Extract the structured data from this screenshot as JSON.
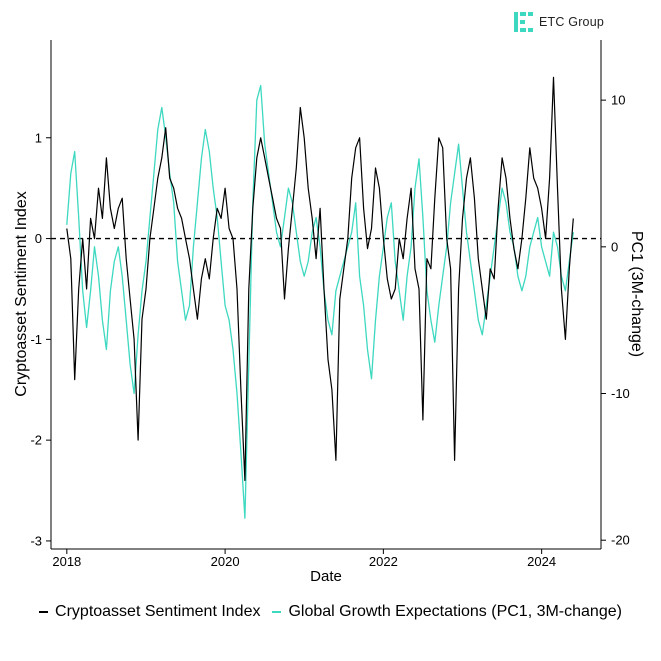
{
  "brand": {
    "name": "ETC Group",
    "color": "#3dd8c0"
  },
  "chart_data": {
    "type": "line",
    "title": "",
    "xlabel": "Date",
    "ylabel": "Cryptoasset Sentiment Index",
    "y2label": "PC1 (3M-change)",
    "xlim": [
      2017.8,
      2024.75
    ],
    "ylim": [
      -3.08,
      1.97
    ],
    "y2lim": [
      -20.6,
      14.1
    ],
    "x_ticks": [
      2018,
      2020,
      2022,
      2024
    ],
    "x_tick_labels": [
      "2018",
      "2020",
      "2022",
      "2024"
    ],
    "y_ticks": [
      -3,
      -2,
      -1,
      0,
      1
    ],
    "y_tick_labels": [
      "-3",
      "-2",
      "-1",
      "0",
      "1"
    ],
    "y2_ticks": [
      -20,
      -10,
      0,
      10
    ],
    "y2_tick_labels": [
      "-20",
      "-10",
      "0",
      "10"
    ],
    "reference_line": {
      "axis": "y",
      "value": 0,
      "style": "dashed"
    },
    "grid": false,
    "legend_position": "bottom",
    "series": [
      {
        "name": "Cryptoasset Sentiment Index",
        "axis": "left",
        "color": "#000000",
        "x": [
          2018.0,
          2018.05,
          2018.1,
          2018.15,
          2018.2,
          2018.25,
          2018.3,
          2018.35,
          2018.4,
          2018.45,
          2018.5,
          2018.55,
          2018.6,
          2018.65,
          2018.7,
          2018.75,
          2018.8,
          2018.85,
          2018.9,
          2018.95,
          2019.0,
          2019.05,
          2019.1,
          2019.15,
          2019.2,
          2019.25,
          2019.3,
          2019.35,
          2019.4,
          2019.45,
          2019.5,
          2019.55,
          2019.6,
          2019.65,
          2019.7,
          2019.75,
          2019.8,
          2019.85,
          2019.9,
          2019.95,
          2020.0,
          2020.05,
          2020.1,
          2020.15,
          2020.2,
          2020.25,
          2020.3,
          2020.35,
          2020.4,
          2020.45,
          2020.5,
          2020.55,
          2020.6,
          2020.65,
          2020.7,
          2020.75,
          2020.8,
          2020.85,
          2020.9,
          2020.95,
          2021.0,
          2021.05,
          2021.1,
          2021.15,
          2021.2,
          2021.25,
          2021.3,
          2021.35,
          2021.4,
          2021.45,
          2021.5,
          2021.55,
          2021.6,
          2021.65,
          2021.7,
          2021.75,
          2021.8,
          2021.85,
          2021.9,
          2021.95,
          2022.0,
          2022.05,
          2022.1,
          2022.15,
          2022.2,
          2022.25,
          2022.3,
          2022.35,
          2022.4,
          2022.45,
          2022.5,
          2022.55,
          2022.6,
          2022.65,
          2022.7,
          2022.75,
          2022.8,
          2022.85,
          2022.9,
          2022.95,
          2023.0,
          2023.05,
          2023.1,
          2023.15,
          2023.2,
          2023.25,
          2023.3,
          2023.35,
          2023.4,
          2023.45,
          2023.5,
          2023.55,
          2023.6,
          2023.65,
          2023.7,
          2023.75,
          2023.8,
          2023.85,
          2023.9,
          2023.95,
          2024.0,
          2024.05,
          2024.1,
          2024.15,
          2024.2,
          2024.25,
          2024.3,
          2024.35,
          2024.4
        ],
        "values": [
          0.1,
          -0.2,
          -1.4,
          -0.5,
          0.0,
          -0.5,
          0.2,
          0.0,
          0.5,
          0.2,
          0.8,
          0.3,
          0.1,
          0.3,
          0.4,
          -0.2,
          -0.6,
          -1.0,
          -2.0,
          -0.8,
          -0.5,
          0.0,
          0.3,
          0.6,
          0.8,
          1.1,
          0.6,
          0.5,
          0.3,
          0.2,
          0.0,
          -0.2,
          -0.5,
          -0.8,
          -0.4,
          -0.2,
          -0.4,
          0.0,
          0.3,
          0.2,
          0.5,
          0.1,
          0.0,
          -0.5,
          -1.5,
          -2.4,
          -0.5,
          0.3,
          0.8,
          1.0,
          0.8,
          0.6,
          0.4,
          0.2,
          0.1,
          -0.6,
          -0.1,
          0.3,
          0.7,
          1.3,
          1.0,
          0.5,
          0.2,
          -0.2,
          0.3,
          -0.5,
          -1.2,
          -1.5,
          -2.2,
          -0.6,
          -0.3,
          0.0,
          0.6,
          0.9,
          1.0,
          0.3,
          -0.1,
          0.1,
          0.7,
          0.5,
          0.0,
          -0.4,
          -0.6,
          -0.5,
          0.0,
          -0.2,
          0.2,
          0.5,
          -0.3,
          -0.5,
          -1.8,
          -0.2,
          -0.3,
          0.4,
          1.0,
          0.9,
          0.0,
          -0.3,
          -2.2,
          -0.5,
          0.2,
          0.6,
          0.8,
          0.4,
          -0.2,
          -0.5,
          -0.8,
          -0.3,
          -0.4,
          0.3,
          0.8,
          0.6,
          0.2,
          -0.1,
          -0.3,
          0.0,
          0.4,
          0.9,
          0.6,
          0.5,
          0.3,
          0.0,
          0.6,
          1.6,
          0.5,
          -0.5,
          -1.0,
          -0.3,
          0.2
        ]
      },
      {
        "name": "Global Growth Expectations (PC1, 3M-change)",
        "axis": "right",
        "color": "#3dd8c0",
        "x": [
          2018.0,
          2018.05,
          2018.1,
          2018.15,
          2018.2,
          2018.25,
          2018.3,
          2018.35,
          2018.4,
          2018.45,
          2018.5,
          2018.55,
          2018.6,
          2018.65,
          2018.7,
          2018.75,
          2018.8,
          2018.85,
          2018.9,
          2018.95,
          2019.0,
          2019.05,
          2019.1,
          2019.15,
          2019.2,
          2019.25,
          2019.3,
          2019.35,
          2019.4,
          2019.45,
          2019.5,
          2019.55,
          2019.6,
          2019.65,
          2019.7,
          2019.75,
          2019.8,
          2019.85,
          2019.9,
          2019.95,
          2020.0,
          2020.05,
          2020.1,
          2020.15,
          2020.2,
          2020.25,
          2020.3,
          2020.35,
          2020.4,
          2020.45,
          2020.5,
          2020.55,
          2020.6,
          2020.65,
          2020.7,
          2020.75,
          2020.8,
          2020.85,
          2020.9,
          2020.95,
          2021.0,
          2021.05,
          2021.1,
          2021.15,
          2021.2,
          2021.25,
          2021.3,
          2021.35,
          2021.4,
          2021.45,
          2021.5,
          2021.55,
          2021.6,
          2021.65,
          2021.7,
          2021.75,
          2021.8,
          2021.85,
          2021.9,
          2021.95,
          2022.0,
          2022.05,
          2022.1,
          2022.15,
          2022.2,
          2022.25,
          2022.3,
          2022.35,
          2022.4,
          2022.45,
          2022.5,
          2022.55,
          2022.6,
          2022.65,
          2022.7,
          2022.75,
          2022.8,
          2022.85,
          2022.9,
          2022.95,
          2023.0,
          2023.05,
          2023.1,
          2023.15,
          2023.2,
          2023.25,
          2023.3,
          2023.35,
          2023.4,
          2023.45,
          2023.5,
          2023.55,
          2023.6,
          2023.65,
          2023.7,
          2023.75,
          2023.8,
          2023.85,
          2023.9,
          2023.95,
          2024.0,
          2024.05,
          2024.1,
          2024.15,
          2024.2,
          2024.25,
          2024.3,
          2024.35,
          2024.4
        ],
        "values": [
          1.5,
          5.0,
          6.5,
          2.0,
          -3.0,
          -5.5,
          -3.0,
          0.0,
          -2.0,
          -5.0,
          -7.0,
          -3.0,
          -1.0,
          0.0,
          -2.0,
          -5.0,
          -8.0,
          -10.0,
          -6.0,
          -3.0,
          -1.0,
          2.0,
          5.0,
          8.0,
          9.5,
          7.5,
          5.0,
          3.0,
          -1.0,
          -3.0,
          -5.0,
          -4.0,
          0.0,
          3.0,
          6.0,
          8.0,
          6.5,
          4.0,
          2.0,
          -1.0,
          -4.0,
          -5.0,
          -7.0,
          -10.0,
          -14.0,
          -18.5,
          -8.0,
          3.0,
          10.0,
          11.0,
          7.0,
          5.0,
          3.0,
          1.0,
          0.0,
          2.0,
          4.0,
          3.0,
          1.0,
          -1.0,
          -2.0,
          -1.0,
          1.0,
          2.0,
          0.0,
          -3.0,
          -5.0,
          -6.0,
          -3.0,
          -2.0,
          -1.0,
          0.0,
          1.0,
          3.0,
          -2.0,
          -4.0,
          -7.0,
          -9.0,
          -5.0,
          -2.0,
          0.0,
          2.0,
          3.0,
          -1.0,
          -3.0,
          -5.0,
          -2.0,
          0.0,
          4.0,
          6.0,
          2.0,
          -3.0,
          -5.0,
          -6.5,
          -4.0,
          -2.0,
          0.0,
          3.0,
          5.0,
          7.0,
          4.0,
          1.0,
          -1.0,
          -3.0,
          -5.0,
          -6.0,
          -4.0,
          -2.0,
          0.0,
          2.0,
          4.0,
          3.0,
          1.0,
          0.0,
          -2.0,
          -3.0,
          -2.0,
          0.0,
          1.0,
          2.0,
          0.0,
          -1.0,
          -2.0,
          1.0,
          0.0,
          -2.0,
          -3.0,
          -1.0,
          1.0
        ]
      }
    ]
  }
}
